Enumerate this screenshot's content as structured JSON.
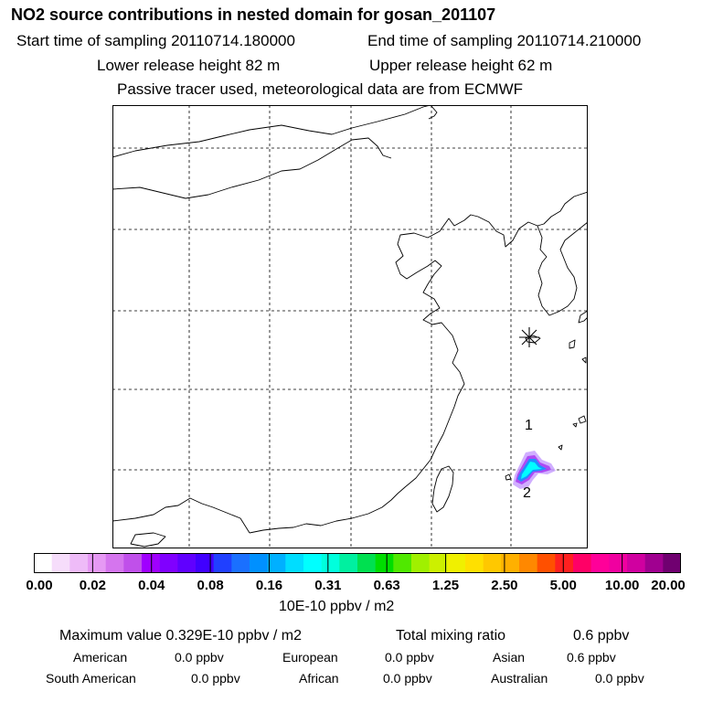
{
  "header": {
    "title": "NO2 source contributions in nested domain for gosan_201107",
    "start_time": "Start time of sampling 20110714.180000",
    "end_time": "End time of sampling 20110714.210000",
    "lower_height": "Lower release height   82 m",
    "upper_height": "Upper release height   62 m",
    "tracer_note": "Passive tracer used, meteorological data are from ECMWF"
  },
  "map": {
    "markers": [
      {
        "label": "1"
      },
      {
        "label": "2"
      }
    ],
    "receptor_symbol": "asterisk-icon",
    "plume_colors": [
      "#c8a0ff",
      "#a020f0",
      "#1e90ff",
      "#00c8ff",
      "#00ffff"
    ]
  },
  "colorbar": {
    "colors": [
      "#ffffff",
      "#f6ddfb",
      "#eebbf8",
      "#e699f4",
      "#d575ee",
      "#c050ea",
      "#a000ff",
      "#8000ff",
      "#6000ff",
      "#4000ff",
      "#2040ff",
      "#1a70ff",
      "#0090ff",
      "#00b0ff",
      "#00ddff",
      "#00ffff",
      "#00ffdd",
      "#00f0a0",
      "#00e050",
      "#00dd00",
      "#50e800",
      "#a0f000",
      "#ccf000",
      "#f0f000",
      "#ffe000",
      "#ffc800",
      "#ffb000",
      "#ff8800",
      "#ff5000",
      "#ff2020",
      "#ff0066",
      "#ff0099",
      "#f000a0",
      "#d000a0",
      "#a00090",
      "#700070"
    ],
    "ticks": [
      "0.00",
      "0.02",
      "0.04",
      "0.08",
      "0.16",
      "0.31",
      "0.63",
      "1.25",
      "2.50",
      "5.00",
      "10.00",
      "20.00"
    ],
    "unit": "10E-10 ppbv / m2"
  },
  "summary": {
    "max_value": "Maximum value  0.329E-10 ppbv / m2",
    "total_mixing": "Total mixing ratio",
    "total_value": "0.6 ppbv",
    "regions": [
      {
        "name": "American",
        "value": "0.0 ppbv"
      },
      {
        "name": "European",
        "value": "0.0 ppbv"
      },
      {
        "name": "Asian",
        "value": "0.6 ppbv"
      },
      {
        "name": "South American",
        "value": "0.0 ppbv"
      },
      {
        "name": "African",
        "value": "0.0 ppbv"
      },
      {
        "name": "Australian",
        "value": "0.0 ppbv"
      }
    ]
  }
}
